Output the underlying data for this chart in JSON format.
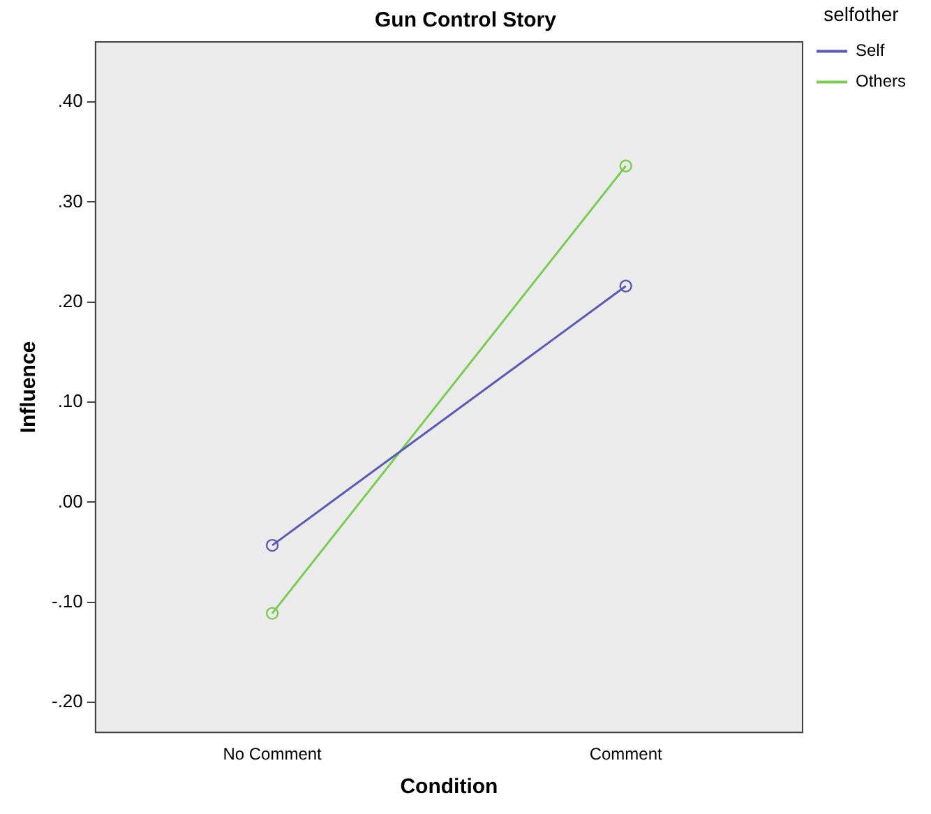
{
  "chart_data": {
    "type": "line",
    "title": "Gun Control Story",
    "xlabel": "Condition",
    "ylabel": "Influence",
    "legend_title": "selfother",
    "categories": [
      "No Comment",
      "Comment"
    ],
    "series": [
      {
        "name": "Self",
        "color": "#5a5ab4",
        "values": [
          -0.043,
          0.216
        ]
      },
      {
        "name": "Others",
        "color": "#78cc50",
        "values": [
          -0.111,
          0.336
        ]
      }
    ],
    "ylim": [
      -0.23,
      0.46
    ],
    "yticks": [
      {
        "value": -0.2,
        "label": "-.20"
      },
      {
        "value": -0.1,
        "label": "-.10"
      },
      {
        "value": 0,
        "label": ".00"
      },
      {
        "value": 0.1,
        "label": ".10"
      },
      {
        "value": 0.2,
        "label": ".20"
      },
      {
        "value": 0.3,
        "label": ".30"
      },
      {
        "value": 0.4,
        "label": ".40"
      }
    ],
    "grid": false,
    "legend": "top right",
    "marker": "circle",
    "line_style": "solid"
  }
}
